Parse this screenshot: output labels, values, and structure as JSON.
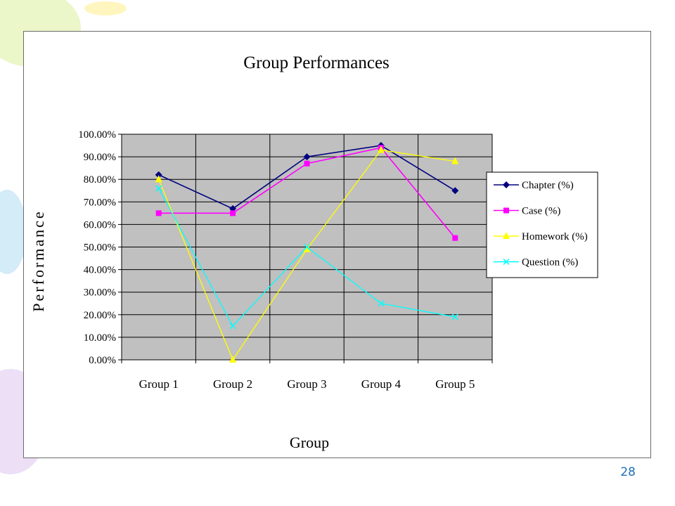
{
  "slide": {
    "page_number": "28"
  },
  "theme": {
    "plot_background": "#c0c0c0",
    "grid_color": "#000000",
    "decor_colors": [
      "#e9f5c3",
      "#cfe9f7",
      "#eadcf5",
      "#fff5b8"
    ]
  },
  "chart_data": {
    "type": "line",
    "title": "Group Performances",
    "xlabel": "Group",
    "ylabel": "Performance",
    "categories": [
      "Group 1",
      "Group 2",
      "Group 3",
      "Group 4",
      "Group 5"
    ],
    "ylim": [
      0,
      1
    ],
    "yticks": [
      "0.00%",
      "10.00%",
      "20.00%",
      "30.00%",
      "40.00%",
      "50.00%",
      "60.00%",
      "70.00%",
      "80.00%",
      "90.00%",
      "100.00%"
    ],
    "grid": true,
    "legend_position": "right",
    "series": [
      {
        "name": "Chapter (%)",
        "color": "#000080",
        "marker": "diamond",
        "values": [
          0.82,
          0.67,
          0.9,
          0.95,
          0.75
        ]
      },
      {
        "name": "Case (%)",
        "color": "#ff00ff",
        "marker": "square",
        "values": [
          0.65,
          0.65,
          0.87,
          0.94,
          0.54
        ]
      },
      {
        "name": "Homework (%)",
        "color": "#ffff00",
        "marker": "triangle",
        "values": [
          0.8,
          0.0,
          0.49,
          0.93,
          0.88
        ]
      },
      {
        "name": "Question (%)",
        "color": "#00ffff",
        "marker": "x",
        "values": [
          0.76,
          0.15,
          0.5,
          0.25,
          0.19
        ]
      }
    ]
  }
}
